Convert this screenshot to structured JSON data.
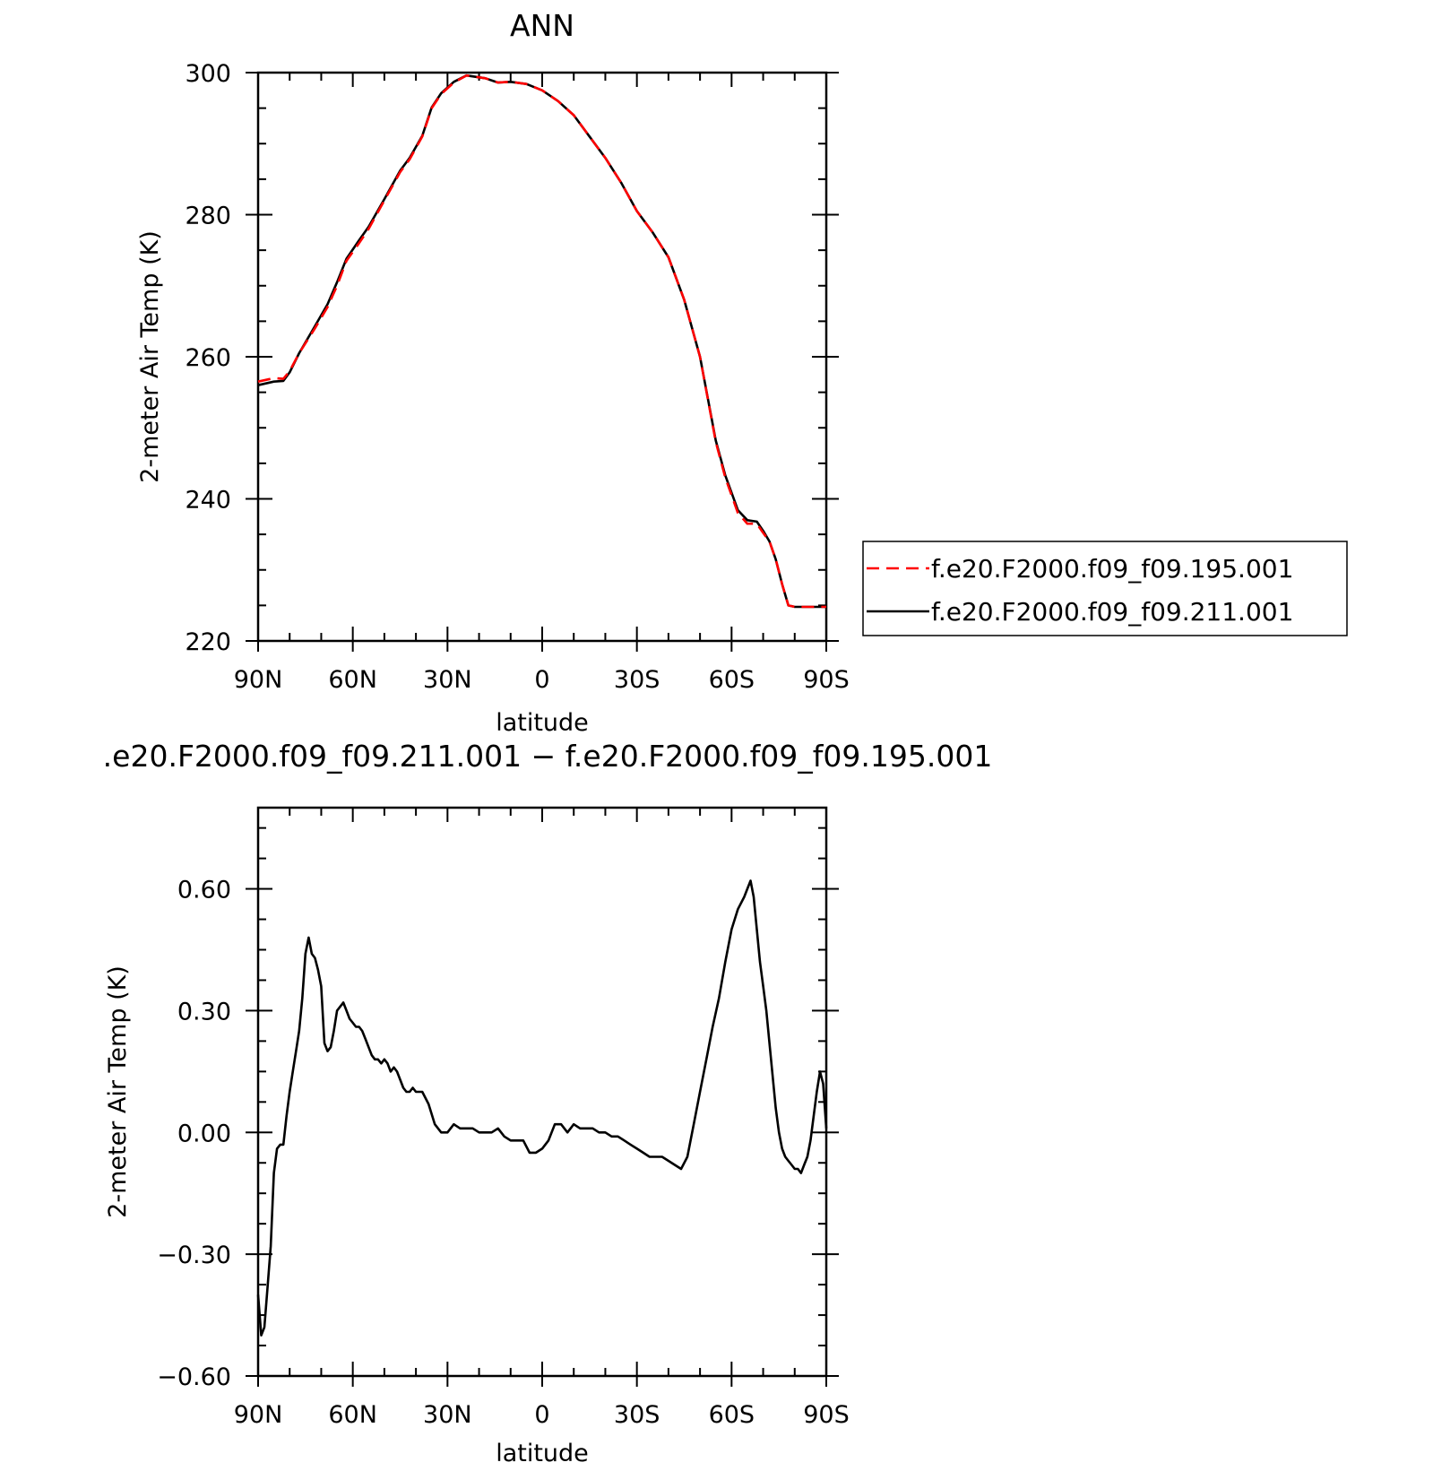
{
  "chart_data": [
    {
      "type": "line",
      "title": "ANN",
      "xlabel": "latitude",
      "ylabel": "2-meter Air Temp (K)",
      "xlim": [
        90,
        -90
      ],
      "ylim": [
        220,
        300
      ],
      "x_tick_values": [
        90,
        60,
        30,
        0,
        -30,
        -60,
        -90
      ],
      "x_tick_labels": [
        "90N",
        "60N",
        "30N",
        "0",
        "30S",
        "60S",
        "90S"
      ],
      "y_ticks": [
        "220",
        "240",
        "260",
        "280",
        "300"
      ],
      "y_tick_values": [
        220,
        240,
        260,
        280,
        300
      ],
      "grid": false,
      "legend_position": "right",
      "series": [
        {
          "name": "f.e20.F2000.f09_f09.195.001",
          "color": "#ff0000",
          "style": "dashed",
          "x": [
            90,
            85,
            82,
            80,
            77,
            72,
            68,
            65,
            62,
            58,
            55,
            50,
            45,
            42,
            38,
            35,
            32,
            28,
            24,
            18,
            14,
            10,
            5,
            0,
            -5,
            -10,
            -15,
            -20,
            -25,
            -30,
            -35,
            -40,
            -45,
            -50,
            -55,
            -58,
            -62,
            -65,
            -68,
            -70,
            -72,
            -74,
            -76,
            -78,
            -80,
            -82,
            -84,
            -86,
            -88,
            -90
          ],
          "y": [
            256.5,
            257,
            256.9,
            258,
            260.5,
            264,
            267,
            270,
            273.5,
            276,
            278,
            282,
            286,
            287.8,
            291,
            295,
            297,
            298.6,
            299.6,
            299.2,
            298.6,
            298.7,
            298.4,
            297.5,
            296,
            294,
            291,
            288,
            284.5,
            280.5,
            277.5,
            274,
            268,
            260,
            248,
            243,
            238,
            236.5,
            236.5,
            235.2,
            234,
            231.5,
            228,
            225,
            224.8,
            224.8,
            224.8,
            224.8,
            224.8,
            224.8
          ]
        },
        {
          "name": "f.e20.F2000.f09_f09.211.001",
          "color": "#000000",
          "style": "solid",
          "x": [
            90,
            85,
            82,
            80,
            77,
            72,
            68,
            65,
            62,
            58,
            55,
            50,
            45,
            42,
            38,
            35,
            32,
            28,
            24,
            18,
            14,
            10,
            5,
            0,
            -5,
            -10,
            -15,
            -20,
            -25,
            -30,
            -35,
            -40,
            -45,
            -50,
            -55,
            -58,
            -62,
            -65,
            -68,
            -70,
            -72,
            -74,
            -76,
            -78,
            -80,
            -82,
            -84,
            -86,
            -88,
            -90
          ],
          "y": [
            256,
            256.5,
            256.6,
            257.8,
            260.5,
            264.3,
            267.4,
            270.5,
            273.8,
            276.4,
            278.3,
            282.2,
            286.2,
            288,
            291.1,
            295.1,
            297.1,
            298.7,
            299.6,
            299.2,
            298.6,
            298.7,
            298.4,
            297.5,
            296,
            294,
            291,
            288,
            284.5,
            280.5,
            277.5,
            274,
            268,
            260,
            248.2,
            243.3,
            238.4,
            237,
            236.8,
            235.5,
            234,
            231.5,
            228,
            225,
            224.8,
            224.8,
            224.8,
            224.8,
            224.8,
            224.8
          ]
        }
      ]
    },
    {
      "type": "line",
      "title": ".e20.F2000.f09_f09.211.001 − f.e20.F2000.f09_f09.195.001",
      "xlabel": "latitude",
      "ylabel": "2-meter Air Temp (K)",
      "xlim": [
        90,
        -90
      ],
      "ylim": [
        -0.6,
        0.8
      ],
      "x_tick_values": [
        90,
        60,
        30,
        0,
        -30,
        -60,
        -90
      ],
      "x_tick_labels": [
        "90N",
        "60N",
        "30N",
        "0",
        "30S",
        "60S",
        "90S"
      ],
      "y_ticks": [
        "−0.60",
        "−0.30",
        "0.00",
        "0.30",
        "0.60"
      ],
      "y_tick_values": [
        -0.6,
        -0.3,
        0.0,
        0.3,
        0.6
      ],
      "grid": false,
      "series": [
        {
          "color": "#000000",
          "style": "solid",
          "x": [
            90,
            89,
            88,
            87,
            86,
            85,
            84,
            83,
            82,
            81,
            80,
            79,
            78,
            77,
            76,
            75,
            74,
            73,
            72,
            71,
            70,
            69,
            68,
            67,
            66,
            65,
            64,
            63,
            62,
            61,
            60,
            59,
            58,
            57,
            56,
            55,
            54,
            53,
            52,
            51,
            50,
            49,
            48,
            47,
            46,
            45,
            44,
            43,
            42,
            41,
            40,
            38,
            36,
            34,
            32,
            30,
            28,
            26,
            24,
            22,
            20,
            18,
            16,
            14,
            12,
            10,
            8,
            6,
            4,
            2,
            0,
            -2,
            -4,
            -6,
            -8,
            -10,
            -12,
            -14,
            -16,
            -18,
            -20,
            -22,
            -24,
            -26,
            -28,
            -30,
            -32,
            -34,
            -36,
            -38,
            -40,
            -42,
            -44,
            -46,
            -48,
            -50,
            -52,
            -54,
            -56,
            -58,
            -60,
            -62,
            -64,
            -65,
            -66,
            -67,
            -68,
            -69,
            -70,
            -71,
            -72,
            -73,
            -74,
            -75,
            -76,
            -77,
            -78,
            -79,
            -80,
            -81,
            -82,
            -83,
            -84,
            -85,
            -86,
            -87,
            -88,
            -89,
            -90
          ],
          "y": [
            -0.4,
            -0.5,
            -0.48,
            -0.38,
            -0.28,
            -0.1,
            -0.04,
            -0.03,
            -0.03,
            0.04,
            0.1,
            0.15,
            0.2,
            0.25,
            0.33,
            0.44,
            0.48,
            0.44,
            0.43,
            0.4,
            0.36,
            0.22,
            0.2,
            0.21,
            0.25,
            0.3,
            0.31,
            0.32,
            0.3,
            0.28,
            0.27,
            0.26,
            0.26,
            0.25,
            0.23,
            0.21,
            0.19,
            0.18,
            0.18,
            0.17,
            0.18,
            0.17,
            0.15,
            0.16,
            0.15,
            0.13,
            0.11,
            0.1,
            0.1,
            0.11,
            0.1,
            0.1,
            0.07,
            0.02,
            0.0,
            0.0,
            0.02,
            0.01,
            0.01,
            0.01,
            0.0,
            0.0,
            0.0,
            0.01,
            -0.01,
            -0.02,
            -0.02,
            -0.02,
            -0.05,
            -0.05,
            -0.04,
            -0.02,
            0.02,
            0.02,
            0.0,
            0.02,
            0.01,
            0.01,
            0.01,
            0.0,
            0.0,
            -0.01,
            -0.01,
            -0.02,
            -0.03,
            -0.04,
            -0.05,
            -0.06,
            -0.06,
            -0.06,
            -0.07,
            -0.08,
            -0.09,
            -0.06,
            0.02,
            0.1,
            0.18,
            0.26,
            0.33,
            0.42,
            0.5,
            0.55,
            0.58,
            0.6,
            0.62,
            0.58,
            0.5,
            0.42,
            0.36,
            0.3,
            0.22,
            0.14,
            0.06,
            0.0,
            -0.04,
            -0.06,
            -0.07,
            -0.08,
            -0.09,
            -0.09,
            -0.1,
            -0.08,
            -0.06,
            -0.02,
            0.04,
            0.1,
            0.15,
            0.12,
            0.01
          ]
        }
      ]
    }
  ]
}
